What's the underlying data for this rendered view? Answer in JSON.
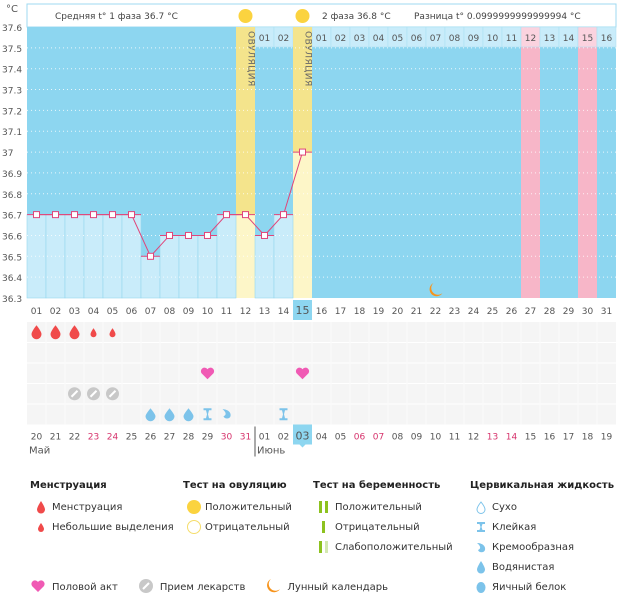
{
  "chart_data": {
    "type": "line",
    "title": "",
    "ylabel": "°C",
    "ylim": [
      36.3,
      37.6
    ],
    "yticks": [
      "37.6",
      "37.5",
      "37.4",
      "37.3",
      "37.2",
      "37.1",
      "37",
      "36.9",
      "36.8",
      "36.7",
      "36.6",
      "36.5",
      "36.4",
      "36.3"
    ],
    "cycle_days": [
      "01",
      "02",
      "03",
      "04",
      "05",
      "06",
      "07",
      "08",
      "09",
      "10",
      "11",
      "12",
      "13",
      "14",
      "15",
      "16",
      "17",
      "18",
      "19",
      "20",
      "21",
      "22",
      "23",
      "24",
      "25",
      "26",
      "27",
      "28",
      "29",
      "30",
      "31"
    ],
    "temperatures": [
      36.7,
      36.7,
      36.7,
      36.7,
      36.7,
      36.7,
      36.5,
      36.6,
      36.6,
      36.6,
      36.7,
      36.7,
      36.6,
      36.7,
      37.0,
      null,
      null,
      null,
      null,
      null,
      null,
      null,
      null,
      null,
      null,
      null,
      null,
      null,
      null,
      null,
      null
    ],
    "current_day_index": 14,
    "ovulation_days": [
      12,
      15
    ],
    "ovulation_label": "ОВУЛЯЦИЯ",
    "predicted_period_days": [
      27,
      30
    ],
    "header": {
      "phase1": "Средняя t° 1 фаза",
      "phase1_value": "36.7 °C",
      "phase2": "2 фаза",
      "phase2_value": "36.8 °C",
      "diff": "Разница t°",
      "diff_value": "0.0999999999999994 °C",
      "after_ovulation_1": [
        "01",
        "02"
      ],
      "after_ovulation_2": [
        "01",
        "02",
        "03",
        "04",
        "05",
        "06",
        "07",
        "08",
        "09",
        "10",
        "11",
        "12",
        "13",
        "14",
        "15",
        "16"
      ]
    },
    "calendar_dates": [
      "20",
      "21",
      "22",
      "23",
      "24",
      "25",
      "26",
      "27",
      "28",
      "29",
      "30",
      "31",
      "01",
      "02",
      "03",
      "04",
      "05",
      "06",
      "07",
      "08",
      "09",
      "10",
      "11",
      "12",
      "13",
      "14",
      "15",
      "16",
      "17",
      "18",
      "19"
    ],
    "weekend_indexes": [
      3,
      4,
      10,
      11,
      17,
      18,
      24,
      25
    ],
    "months": [
      {
        "label": "Май",
        "start_index": 0
      },
      {
        "label": "Июнь",
        "start_index": 12
      }
    ],
    "markers": {
      "menstruation": [
        0,
        1,
        2
      ],
      "spotting": [
        3,
        4
      ],
      "intercourse": [
        9,
        14
      ],
      "medication": [
        2,
        3,
        4
      ],
      "watery": [
        6,
        7,
        8
      ],
      "sticky": [
        9,
        13
      ],
      "creamy": [
        10
      ],
      "moon": [
        21
      ]
    },
    "colors": {
      "plot_bg": "#8dd6f0",
      "bar_fill": "#c9ecfa",
      "ovulation": "#f4e48c",
      "ovulation_bar": "#fdf6c8",
      "period_pred": "#f7b6c8",
      "line": "#e0457a",
      "weekend": "#d6336c",
      "today": "#8dd6f0"
    }
  },
  "legend": {
    "menstruation": {
      "title": "Менструация",
      "items": [
        "Менструация",
        "Небольшие выделения"
      ]
    },
    "ovulation_test": {
      "title": "Тест на овуляцию",
      "items": [
        "Положительный",
        "Отрицательный"
      ]
    },
    "pregnancy_test": {
      "title": "Тест на беременность",
      "items": [
        "Положительный",
        "Отрицательный",
        "Слабоположительный"
      ]
    },
    "cervical": {
      "title": "Цервикальная жидкость",
      "items": [
        "Сухо",
        "Клейкая",
        "Кремообразная",
        "Водянистая",
        "Яичный белок"
      ]
    },
    "other": {
      "intercourse": "Половой акт",
      "medication": "Прием лекарств",
      "moon": "Лунный календарь"
    }
  }
}
